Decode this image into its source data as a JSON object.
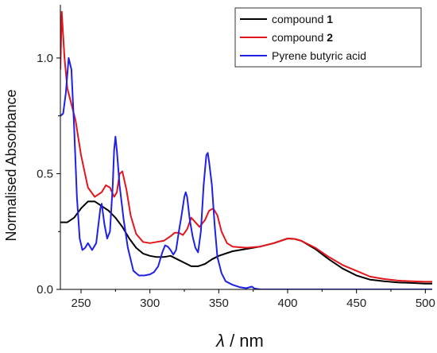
{
  "chart_data": {
    "type": "line",
    "xlabel": {
      "symbol": "λ",
      "unit": " / nm"
    },
    "ylabel": "Normalised Absorbance",
    "xlim": [
      235,
      505
    ],
    "ylim": [
      0,
      1.23
    ],
    "x_ticks": [
      250,
      300,
      350,
      400,
      450,
      500
    ],
    "y_ticks": [
      0.0,
      0.5,
      1.0
    ],
    "y_tick_labels": [
      "0.0",
      "0.5",
      "1.0"
    ],
    "grid": false,
    "legend_position": "top-right",
    "series": [
      {
        "name": "compound 1",
        "name_text": "compound ",
        "name_bold": "1",
        "color": "#000000",
        "points": [
          [
            235,
            0.29
          ],
          [
            240,
            0.29
          ],
          [
            245,
            0.31
          ],
          [
            250,
            0.35
          ],
          [
            255,
            0.38
          ],
          [
            260,
            0.38
          ],
          [
            265,
            0.36
          ],
          [
            270,
            0.34
          ],
          [
            275,
            0.31
          ],
          [
            280,
            0.27
          ],
          [
            285,
            0.22
          ],
          [
            290,
            0.18
          ],
          [
            295,
            0.155
          ],
          [
            300,
            0.145
          ],
          [
            305,
            0.14
          ],
          [
            310,
            0.14
          ],
          [
            315,
            0.145
          ],
          [
            320,
            0.13
          ],
          [
            325,
            0.115
          ],
          [
            330,
            0.1
          ],
          [
            335,
            0.1
          ],
          [
            340,
            0.11
          ],
          [
            345,
            0.13
          ],
          [
            350,
            0.145
          ],
          [
            360,
            0.165
          ],
          [
            370,
            0.175
          ],
          [
            380,
            0.185
          ],
          [
            390,
            0.2
          ],
          [
            400,
            0.22
          ],
          [
            405,
            0.218
          ],
          [
            410,
            0.21
          ],
          [
            420,
            0.175
          ],
          [
            430,
            0.13
          ],
          [
            440,
            0.09
          ],
          [
            450,
            0.06
          ],
          [
            460,
            0.042
          ],
          [
            470,
            0.035
          ],
          [
            480,
            0.03
          ],
          [
            490,
            0.028
          ],
          [
            500,
            0.025
          ],
          [
            505,
            0.025
          ]
        ]
      },
      {
        "name": "compound 2",
        "name_text": "compound ",
        "name_bold": "2",
        "color": "#e3161c",
        "points": [
          [
            235,
            0.95
          ],
          [
            236,
            1.2
          ],
          [
            238,
            1.0
          ],
          [
            240,
            0.87
          ],
          [
            243,
            0.8
          ],
          [
            246,
            0.73
          ],
          [
            250,
            0.58
          ],
          [
            255,
            0.44
          ],
          [
            260,
            0.4
          ],
          [
            265,
            0.42
          ],
          [
            268,
            0.45
          ],
          [
            271,
            0.44
          ],
          [
            274,
            0.4
          ],
          [
            276,
            0.42
          ],
          [
            278,
            0.5
          ],
          [
            280,
            0.51
          ],
          [
            283,
            0.43
          ],
          [
            286,
            0.32
          ],
          [
            290,
            0.24
          ],
          [
            295,
            0.205
          ],
          [
            300,
            0.2
          ],
          [
            305,
            0.205
          ],
          [
            310,
            0.21
          ],
          [
            315,
            0.23
          ],
          [
            318,
            0.245
          ],
          [
            321,
            0.245
          ],
          [
            324,
            0.235
          ],
          [
            327,
            0.26
          ],
          [
            330,
            0.31
          ],
          [
            333,
            0.29
          ],
          [
            336,
            0.27
          ],
          [
            340,
            0.3
          ],
          [
            343,
            0.34
          ],
          [
            346,
            0.35
          ],
          [
            349,
            0.32
          ],
          [
            352,
            0.25
          ],
          [
            356,
            0.2
          ],
          [
            360,
            0.185
          ],
          [
            370,
            0.18
          ],
          [
            380,
            0.185
          ],
          [
            390,
            0.2
          ],
          [
            400,
            0.22
          ],
          [
            405,
            0.218
          ],
          [
            410,
            0.21
          ],
          [
            420,
            0.18
          ],
          [
            430,
            0.14
          ],
          [
            440,
            0.105
          ],
          [
            450,
            0.08
          ],
          [
            460,
            0.055
          ],
          [
            470,
            0.045
          ],
          [
            480,
            0.038
          ],
          [
            490,
            0.035
          ],
          [
            500,
            0.033
          ],
          [
            505,
            0.033
          ]
        ]
      },
      {
        "name": "Pyrene butyric acid",
        "name_text": "Pyrene butyric acid",
        "name_bold": "",
        "color": "#1f22e6",
        "points": [
          [
            235,
            0.75
          ],
          [
            237,
            0.76
          ],
          [
            239,
            0.85
          ],
          [
            241,
            1.0
          ],
          [
            243,
            0.95
          ],
          [
            245,
            0.7
          ],
          [
            247,
            0.4
          ],
          [
            249,
            0.22
          ],
          [
            251,
            0.17
          ],
          [
            253,
            0.18
          ],
          [
            255,
            0.2
          ],
          [
            258,
            0.17
          ],
          [
            261,
            0.2
          ],
          [
            264,
            0.35
          ],
          [
            265,
            0.37
          ],
          [
            267,
            0.28
          ],
          [
            269,
            0.22
          ],
          [
            271,
            0.25
          ],
          [
            273,
            0.45
          ],
          [
            274,
            0.6
          ],
          [
            275,
            0.66
          ],
          [
            276,
            0.6
          ],
          [
            278,
            0.45
          ],
          [
            281,
            0.3
          ],
          [
            284,
            0.18
          ],
          [
            288,
            0.08
          ],
          [
            292,
            0.06
          ],
          [
            296,
            0.06
          ],
          [
            300,
            0.065
          ],
          [
            303,
            0.075
          ],
          [
            306,
            0.1
          ],
          [
            309,
            0.16
          ],
          [
            311,
            0.19
          ],
          [
            313,
            0.185
          ],
          [
            315,
            0.17
          ],
          [
            317,
            0.15
          ],
          [
            319,
            0.17
          ],
          [
            321,
            0.25
          ],
          [
            323,
            0.32
          ],
          [
            325,
            0.4
          ],
          [
            326,
            0.42
          ],
          [
            327,
            0.4
          ],
          [
            329,
            0.3
          ],
          [
            331,
            0.23
          ],
          [
            333,
            0.18
          ],
          [
            335,
            0.16
          ],
          [
            337,
            0.25
          ],
          [
            339,
            0.45
          ],
          [
            341,
            0.58
          ],
          [
            342,
            0.59
          ],
          [
            343,
            0.55
          ],
          [
            345,
            0.45
          ],
          [
            347,
            0.28
          ],
          [
            349,
            0.14
          ],
          [
            352,
            0.07
          ],
          [
            355,
            0.035
          ],
          [
            360,
            0.02
          ],
          [
            365,
            0.01
          ],
          [
            370,
            0.005
          ],
          [
            374,
            0.012
          ],
          [
            376,
            0.004
          ],
          [
            380,
            0.0
          ],
          [
            400,
            0.0
          ],
          [
            450,
            0.0
          ],
          [
            500,
            0.0
          ],
          [
            505,
            0.0
          ]
        ]
      }
    ]
  }
}
